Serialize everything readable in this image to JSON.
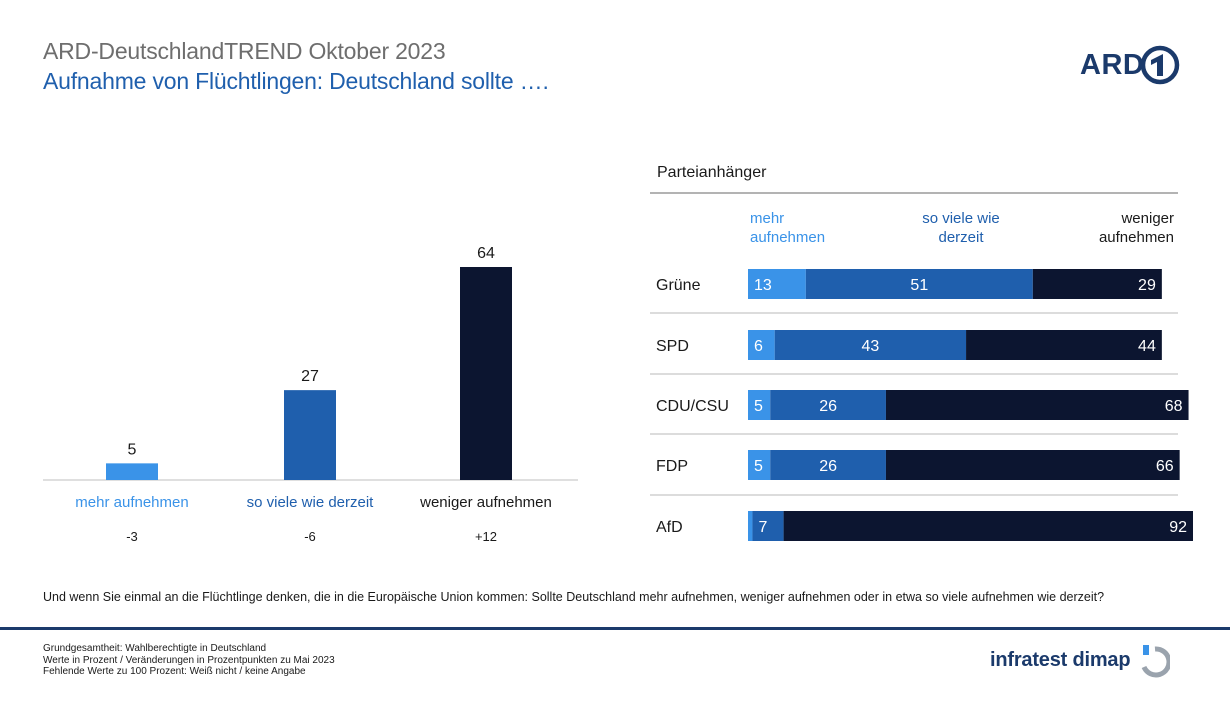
{
  "header": {
    "title": "ARD-DeutschlandTREND Oktober 2023",
    "subtitle": "Aufnahme von Flüchtlingen: Deutschland sollte ….",
    "logo_text": "ARD"
  },
  "colors": {
    "light_blue": "#3a93e8",
    "mid_blue": "#1f5fad",
    "dark_navy": "#0c1530",
    "brand_navy": "#1b3a6b"
  },
  "chart_data": [
    {
      "type": "bar",
      "categories": [
        "mehr aufnehmen",
        "so viele wie derzeit",
        "weniger aufnehmen"
      ],
      "values": [
        5,
        27,
        64
      ],
      "changes": [
        "-3",
        "-6",
        "+12"
      ],
      "colors": [
        "#3a93e8",
        "#1f5fad",
        "#0c1530"
      ],
      "ylim": [
        0,
        64
      ]
    },
    {
      "type": "bar",
      "orientation": "horizontal",
      "stacked": true,
      "title": "Parteianhänger",
      "categories": [
        "Grüne",
        "SPD",
        "CDU/CSU",
        "FDP",
        "AfD"
      ],
      "series": [
        {
          "name": "mehr aufnehmen",
          "color": "#3a93e8",
          "values": [
            13,
            6,
            5,
            5,
            1
          ]
        },
        {
          "name": "so viele wie derzeit",
          "color": "#1f5fad",
          "values": [
            51,
            43,
            26,
            26,
            7
          ]
        },
        {
          "name": "weniger aufnehmen",
          "color": "#0c1530",
          "values": [
            29,
            44,
            68,
            66,
            92
          ]
        }
      ],
      "labels": [
        [
          "13",
          "51",
          "29"
        ],
        [
          "6",
          "43",
          "44"
        ],
        [
          "5",
          "26",
          "68"
        ],
        [
          "5",
          "26",
          "66"
        ],
        [
          "",
          "7",
          "92"
        ]
      ],
      "column_headers": {
        "mehr": [
          "mehr",
          "aufnehmen"
        ],
        "soviele": [
          "so viele wie",
          "derzeit"
        ],
        "weniger": [
          "weniger",
          "aufnehmen"
        ]
      }
    }
  ],
  "question": "Und wenn Sie einmal an die Flüchtlinge denken, die in die Europäische Union kommen: Sollte Deutschland mehr aufnehmen, weniger aufnehmen oder in etwa so viele aufnehmen wie derzeit?",
  "footnotes": [
    "Grundgesamtheit: Wahlberechtigte in Deutschland",
    "Werte in Prozent / Veränderungen in Prozentpunkten zu Mai 2023",
    "Fehlende Werte zu 100 Prozent: Weiß nicht / keine Angabe"
  ],
  "footer": {
    "brand": "infratest dimap"
  }
}
